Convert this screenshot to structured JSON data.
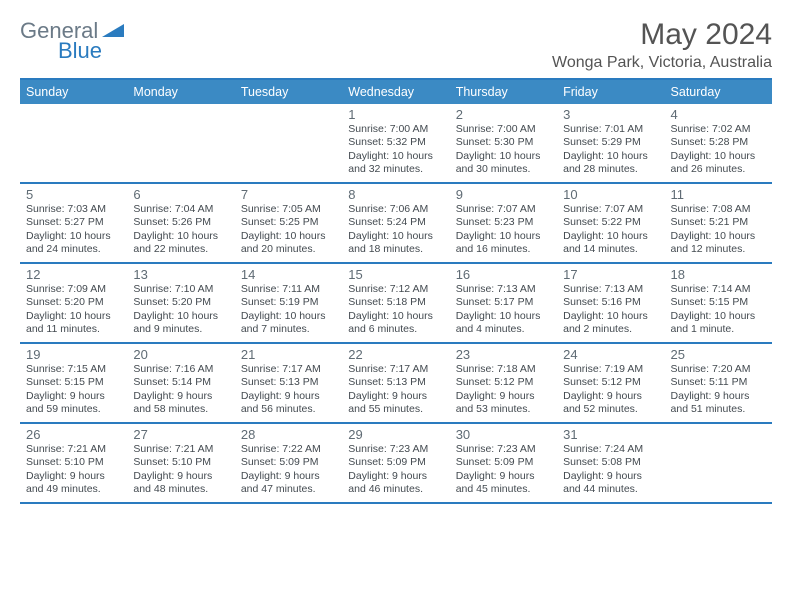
{
  "brand": {
    "text1": "General",
    "text2": "Blue"
  },
  "title": "May 2024",
  "location": "Wonga Park, Victoria, Australia",
  "colors": {
    "header_bg": "#3b8ac4",
    "border": "#2a7bbf",
    "text": "#434a50",
    "title_color": "#545454",
    "logo_gray": "#6b7a87",
    "logo_blue": "#2a7bbf"
  },
  "day_headers": [
    "Sunday",
    "Monday",
    "Tuesday",
    "Wednesday",
    "Thursday",
    "Friday",
    "Saturday"
  ],
  "weeks": [
    [
      {
        "num": "",
        "sunrise": "",
        "sunset": "",
        "daylight1": "",
        "daylight2": ""
      },
      {
        "num": "",
        "sunrise": "",
        "sunset": "",
        "daylight1": "",
        "daylight2": ""
      },
      {
        "num": "",
        "sunrise": "",
        "sunset": "",
        "daylight1": "",
        "daylight2": ""
      },
      {
        "num": "1",
        "sunrise": "Sunrise: 7:00 AM",
        "sunset": "Sunset: 5:32 PM",
        "daylight1": "Daylight: 10 hours",
        "daylight2": "and 32 minutes."
      },
      {
        "num": "2",
        "sunrise": "Sunrise: 7:00 AM",
        "sunset": "Sunset: 5:30 PM",
        "daylight1": "Daylight: 10 hours",
        "daylight2": "and 30 minutes."
      },
      {
        "num": "3",
        "sunrise": "Sunrise: 7:01 AM",
        "sunset": "Sunset: 5:29 PM",
        "daylight1": "Daylight: 10 hours",
        "daylight2": "and 28 minutes."
      },
      {
        "num": "4",
        "sunrise": "Sunrise: 7:02 AM",
        "sunset": "Sunset: 5:28 PM",
        "daylight1": "Daylight: 10 hours",
        "daylight2": "and 26 minutes."
      }
    ],
    [
      {
        "num": "5",
        "sunrise": "Sunrise: 7:03 AM",
        "sunset": "Sunset: 5:27 PM",
        "daylight1": "Daylight: 10 hours",
        "daylight2": "and 24 minutes."
      },
      {
        "num": "6",
        "sunrise": "Sunrise: 7:04 AM",
        "sunset": "Sunset: 5:26 PM",
        "daylight1": "Daylight: 10 hours",
        "daylight2": "and 22 minutes."
      },
      {
        "num": "7",
        "sunrise": "Sunrise: 7:05 AM",
        "sunset": "Sunset: 5:25 PM",
        "daylight1": "Daylight: 10 hours",
        "daylight2": "and 20 minutes."
      },
      {
        "num": "8",
        "sunrise": "Sunrise: 7:06 AM",
        "sunset": "Sunset: 5:24 PM",
        "daylight1": "Daylight: 10 hours",
        "daylight2": "and 18 minutes."
      },
      {
        "num": "9",
        "sunrise": "Sunrise: 7:07 AM",
        "sunset": "Sunset: 5:23 PM",
        "daylight1": "Daylight: 10 hours",
        "daylight2": "and 16 minutes."
      },
      {
        "num": "10",
        "sunrise": "Sunrise: 7:07 AM",
        "sunset": "Sunset: 5:22 PM",
        "daylight1": "Daylight: 10 hours",
        "daylight2": "and 14 minutes."
      },
      {
        "num": "11",
        "sunrise": "Sunrise: 7:08 AM",
        "sunset": "Sunset: 5:21 PM",
        "daylight1": "Daylight: 10 hours",
        "daylight2": "and 12 minutes."
      }
    ],
    [
      {
        "num": "12",
        "sunrise": "Sunrise: 7:09 AM",
        "sunset": "Sunset: 5:20 PM",
        "daylight1": "Daylight: 10 hours",
        "daylight2": "and 11 minutes."
      },
      {
        "num": "13",
        "sunrise": "Sunrise: 7:10 AM",
        "sunset": "Sunset: 5:20 PM",
        "daylight1": "Daylight: 10 hours",
        "daylight2": "and 9 minutes."
      },
      {
        "num": "14",
        "sunrise": "Sunrise: 7:11 AM",
        "sunset": "Sunset: 5:19 PM",
        "daylight1": "Daylight: 10 hours",
        "daylight2": "and 7 minutes."
      },
      {
        "num": "15",
        "sunrise": "Sunrise: 7:12 AM",
        "sunset": "Sunset: 5:18 PM",
        "daylight1": "Daylight: 10 hours",
        "daylight2": "and 6 minutes."
      },
      {
        "num": "16",
        "sunrise": "Sunrise: 7:13 AM",
        "sunset": "Sunset: 5:17 PM",
        "daylight1": "Daylight: 10 hours",
        "daylight2": "and 4 minutes."
      },
      {
        "num": "17",
        "sunrise": "Sunrise: 7:13 AM",
        "sunset": "Sunset: 5:16 PM",
        "daylight1": "Daylight: 10 hours",
        "daylight2": "and 2 minutes."
      },
      {
        "num": "18",
        "sunrise": "Sunrise: 7:14 AM",
        "sunset": "Sunset: 5:15 PM",
        "daylight1": "Daylight: 10 hours",
        "daylight2": "and 1 minute."
      }
    ],
    [
      {
        "num": "19",
        "sunrise": "Sunrise: 7:15 AM",
        "sunset": "Sunset: 5:15 PM",
        "daylight1": "Daylight: 9 hours",
        "daylight2": "and 59 minutes."
      },
      {
        "num": "20",
        "sunrise": "Sunrise: 7:16 AM",
        "sunset": "Sunset: 5:14 PM",
        "daylight1": "Daylight: 9 hours",
        "daylight2": "and 58 minutes."
      },
      {
        "num": "21",
        "sunrise": "Sunrise: 7:17 AM",
        "sunset": "Sunset: 5:13 PM",
        "daylight1": "Daylight: 9 hours",
        "daylight2": "and 56 minutes."
      },
      {
        "num": "22",
        "sunrise": "Sunrise: 7:17 AM",
        "sunset": "Sunset: 5:13 PM",
        "daylight1": "Daylight: 9 hours",
        "daylight2": "and 55 minutes."
      },
      {
        "num": "23",
        "sunrise": "Sunrise: 7:18 AM",
        "sunset": "Sunset: 5:12 PM",
        "daylight1": "Daylight: 9 hours",
        "daylight2": "and 53 minutes."
      },
      {
        "num": "24",
        "sunrise": "Sunrise: 7:19 AM",
        "sunset": "Sunset: 5:12 PM",
        "daylight1": "Daylight: 9 hours",
        "daylight2": "and 52 minutes."
      },
      {
        "num": "25",
        "sunrise": "Sunrise: 7:20 AM",
        "sunset": "Sunset: 5:11 PM",
        "daylight1": "Daylight: 9 hours",
        "daylight2": "and 51 minutes."
      }
    ],
    [
      {
        "num": "26",
        "sunrise": "Sunrise: 7:21 AM",
        "sunset": "Sunset: 5:10 PM",
        "daylight1": "Daylight: 9 hours",
        "daylight2": "and 49 minutes."
      },
      {
        "num": "27",
        "sunrise": "Sunrise: 7:21 AM",
        "sunset": "Sunset: 5:10 PM",
        "daylight1": "Daylight: 9 hours",
        "daylight2": "and 48 minutes."
      },
      {
        "num": "28",
        "sunrise": "Sunrise: 7:22 AM",
        "sunset": "Sunset: 5:09 PM",
        "daylight1": "Daylight: 9 hours",
        "daylight2": "and 47 minutes."
      },
      {
        "num": "29",
        "sunrise": "Sunrise: 7:23 AM",
        "sunset": "Sunset: 5:09 PM",
        "daylight1": "Daylight: 9 hours",
        "daylight2": "and 46 minutes."
      },
      {
        "num": "30",
        "sunrise": "Sunrise: 7:23 AM",
        "sunset": "Sunset: 5:09 PM",
        "daylight1": "Daylight: 9 hours",
        "daylight2": "and 45 minutes."
      },
      {
        "num": "31",
        "sunrise": "Sunrise: 7:24 AM",
        "sunset": "Sunset: 5:08 PM",
        "daylight1": "Daylight: 9 hours",
        "daylight2": "and 44 minutes."
      },
      {
        "num": "",
        "sunrise": "",
        "sunset": "",
        "daylight1": "",
        "daylight2": ""
      }
    ]
  ]
}
